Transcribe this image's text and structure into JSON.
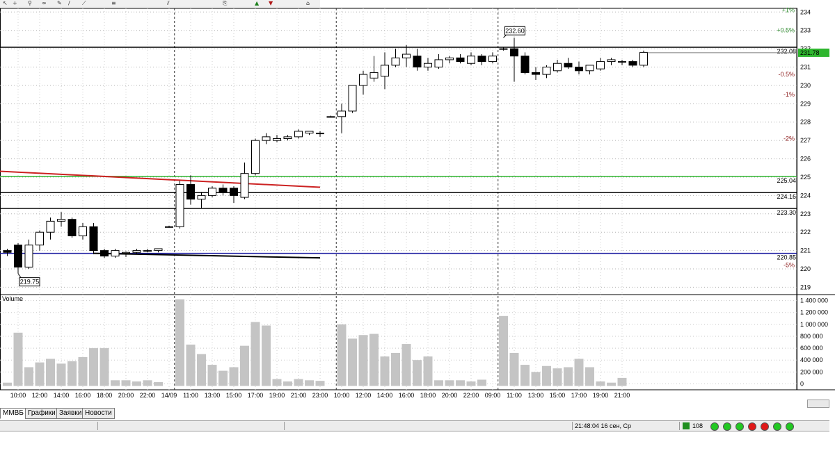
{
  "chart_data": {
    "type": "candlestick",
    "instrument_tab": "ММВБ",
    "price_axis": {
      "range": [
        218.6,
        234.2
      ],
      "ticks": [
        "219",
        "220",
        "221",
        "222",
        "223",
        "224",
        "225",
        "226",
        "227",
        "228",
        "229",
        "230",
        "231",
        "232",
        "233",
        "234"
      ]
    },
    "percent_labels": [
      {
        "text": "+1%",
        "price": 234.1,
        "color": "#2e8b2e"
      },
      {
        "text": "+0.5%",
        "price": 233.0,
        "color": "#2e8b2e"
      },
      {
        "text": "-0.5%",
        "price": 230.6,
        "color": "#8b1a1a"
      },
      {
        "text": "-1%",
        "price": 229.5,
        "color": "#8b1a1a"
      },
      {
        "text": "-2%",
        "price": 227.1,
        "color": "#8b1a1a"
      },
      {
        "text": "-5%",
        "price": 220.2,
        "color": "#8b1a1a"
      }
    ],
    "levels": [
      {
        "price": 232.08,
        "label": "232.08",
        "color": "#000000"
      },
      {
        "price": 225.04,
        "label": "225.04",
        "color": "#2fb62f"
      },
      {
        "price": 224.16,
        "label": "224.16",
        "color": "#000000"
      },
      {
        "price": 223.3,
        "label": "223.30",
        "color": "#000000"
      },
      {
        "price": 220.85,
        "label": "220.85",
        "color": "#1a1aa0"
      }
    ],
    "current_price": {
      "value": "231.78",
      "price": 231.78,
      "color": "#2fb62f"
    },
    "annotations": [
      {
        "text": "232.60",
        "index": 46,
        "price": 232.6
      },
      {
        "text": "219.75",
        "index": 1,
        "price": 219.75
      }
    ],
    "trend_lines": [
      {
        "color": "#cc2222",
        "points": [
          [
            -1.6,
            225.35
          ],
          [
            29,
            224.45
          ]
        ]
      },
      {
        "color": "#000000",
        "points": [
          [
            8,
            220.85
          ],
          [
            29,
            220.6
          ]
        ]
      }
    ],
    "x_labels": [
      {
        "text": "10:00",
        "index": 1
      },
      {
        "text": "12:00",
        "index": 3
      },
      {
        "text": "14:00",
        "index": 5
      },
      {
        "text": "16:00",
        "index": 7
      },
      {
        "text": "18:00",
        "index": 9
      },
      {
        "text": "20:00",
        "index": 11
      },
      {
        "text": "22:00",
        "index": 13
      },
      {
        "text": "14/09",
        "index": 15
      },
      {
        "text": "11:00",
        "index": 17
      },
      {
        "text": "13:00",
        "index": 19
      },
      {
        "text": "15:00",
        "index": 21
      },
      {
        "text": "17:00",
        "index": 23
      },
      {
        "text": "19:00",
        "index": 25
      },
      {
        "text": "21:00",
        "index": 27
      },
      {
        "text": "23:00",
        "index": 29
      },
      {
        "text": "10:00",
        "index": 31
      },
      {
        "text": "12:00",
        "index": 33
      },
      {
        "text": "14:00",
        "index": 35
      },
      {
        "text": "16:00",
        "index": 37
      },
      {
        "text": "18:00",
        "index": 39
      },
      {
        "text": "20:00",
        "index": 41
      },
      {
        "text": "22:00",
        "index": 43
      },
      {
        "text": "09:00",
        "index": 45
      },
      {
        "text": "11:00",
        "index": 47
      },
      {
        "text": "13:00",
        "index": 49
      },
      {
        "text": "15:00",
        "index": 51
      },
      {
        "text": "17:00",
        "index": 53
      },
      {
        "text": "19:00",
        "index": 55
      },
      {
        "text": "21:00",
        "index": 57
      }
    ],
    "session_separators": [
      15.5,
      30.5,
      45.5
    ],
    "candles": [
      {
        "o": 221.0,
        "h": 221.1,
        "l": 220.7,
        "c": 220.9
      },
      {
        "o": 221.3,
        "h": 221.4,
        "l": 219.75,
        "c": 220.1
      },
      {
        "o": 220.1,
        "h": 221.6,
        "l": 220.0,
        "c": 221.3
      },
      {
        "o": 221.3,
        "h": 222.1,
        "l": 221.0,
        "c": 222.0
      },
      {
        "o": 222.0,
        "h": 222.8,
        "l": 221.6,
        "c": 222.6
      },
      {
        "o": 222.6,
        "h": 223.1,
        "l": 222.3,
        "c": 222.7
      },
      {
        "o": 222.7,
        "h": 222.8,
        "l": 221.7,
        "c": 221.8
      },
      {
        "o": 221.8,
        "h": 222.5,
        "l": 221.6,
        "c": 222.3
      },
      {
        "o": 222.3,
        "h": 222.5,
        "l": 220.8,
        "c": 221.0
      },
      {
        "o": 221.0,
        "h": 221.1,
        "l": 220.6,
        "c": 220.7
      },
      {
        "o": 220.7,
        "h": 221.1,
        "l": 220.6,
        "c": 221.0
      },
      {
        "o": 220.85,
        "h": 220.95,
        "l": 220.65,
        "c": 220.9
      },
      {
        "o": 220.9,
        "h": 221.1,
        "l": 220.8,
        "c": 221.0
      },
      {
        "o": 221.0,
        "h": 221.1,
        "l": 220.9,
        "c": 221.0
      },
      {
        "o": 221.0,
        "h": 221.1,
        "l": 220.9,
        "c": 221.1
      },
      {
        "o": 222.3,
        "h": 222.35,
        "l": 222.25,
        "c": 222.3
      },
      {
        "o": 222.3,
        "h": 224.8,
        "l": 222.2,
        "c": 224.6
      },
      {
        "o": 224.6,
        "h": 225.1,
        "l": 223.5,
        "c": 223.8
      },
      {
        "o": 223.8,
        "h": 224.2,
        "l": 223.3,
        "c": 224.0
      },
      {
        "o": 224.0,
        "h": 224.5,
        "l": 223.9,
        "c": 224.4
      },
      {
        "o": 224.4,
        "h": 224.6,
        "l": 224.0,
        "c": 224.2
      },
      {
        "o": 224.4,
        "h": 224.5,
        "l": 223.6,
        "c": 224.0
      },
      {
        "o": 223.9,
        "h": 225.8,
        "l": 223.8,
        "c": 225.2
      },
      {
        "o": 225.2,
        "h": 227.1,
        "l": 225.1,
        "c": 227.0
      },
      {
        "o": 227.0,
        "h": 227.4,
        "l": 226.8,
        "c": 227.2
      },
      {
        "o": 227.0,
        "h": 227.3,
        "l": 226.9,
        "c": 227.1
      },
      {
        "o": 227.1,
        "h": 227.3,
        "l": 227.0,
        "c": 227.2
      },
      {
        "o": 227.2,
        "h": 227.6,
        "l": 227.1,
        "c": 227.5
      },
      {
        "o": 227.4,
        "h": 227.5,
        "l": 227.3,
        "c": 227.5
      },
      {
        "o": 227.4,
        "h": 227.5,
        "l": 227.2,
        "c": 227.4
      },
      {
        "o": 228.3,
        "h": 228.35,
        "l": 228.25,
        "c": 228.3
      },
      {
        "o": 228.3,
        "h": 229.0,
        "l": 227.4,
        "c": 228.6
      },
      {
        "o": 228.6,
        "h": 230.0,
        "l": 228.5,
        "c": 230.0
      },
      {
        "o": 230.0,
        "h": 230.8,
        "l": 229.5,
        "c": 230.6
      },
      {
        "o": 230.4,
        "h": 231.6,
        "l": 230.2,
        "c": 230.7
      },
      {
        "o": 230.5,
        "h": 231.8,
        "l": 229.8,
        "c": 231.1
      },
      {
        "o": 231.1,
        "h": 232.0,
        "l": 231.0,
        "c": 231.5
      },
      {
        "o": 231.5,
        "h": 232.2,
        "l": 231.0,
        "c": 231.7
      },
      {
        "o": 231.6,
        "h": 232.0,
        "l": 230.8,
        "c": 231.0
      },
      {
        "o": 231.0,
        "h": 231.5,
        "l": 230.8,
        "c": 231.2
      },
      {
        "o": 231.0,
        "h": 231.7,
        "l": 230.9,
        "c": 231.4
      },
      {
        "o": 231.4,
        "h": 231.6,
        "l": 231.2,
        "c": 231.5
      },
      {
        "o": 231.5,
        "h": 231.7,
        "l": 231.2,
        "c": 231.3
      },
      {
        "o": 231.2,
        "h": 231.8,
        "l": 231.1,
        "c": 231.6
      },
      {
        "o": 231.6,
        "h": 231.7,
        "l": 231.1,
        "c": 231.3
      },
      {
        "o": 231.3,
        "h": 231.8,
        "l": 231.2,
        "c": 231.6
      },
      {
        "o": 232.0,
        "h": 232.1,
        "l": 231.9,
        "c": 232.0
      },
      {
        "o": 232.0,
        "h": 232.6,
        "l": 230.2,
        "c": 231.6
      },
      {
        "o": 231.6,
        "h": 231.8,
        "l": 230.6,
        "c": 230.7
      },
      {
        "o": 230.7,
        "h": 231.0,
        "l": 230.3,
        "c": 230.6
      },
      {
        "o": 230.6,
        "h": 231.1,
        "l": 230.4,
        "c": 231.0
      },
      {
        "o": 230.8,
        "h": 231.4,
        "l": 230.7,
        "c": 231.2
      },
      {
        "o": 231.2,
        "h": 231.5,
        "l": 230.9,
        "c": 231.0
      },
      {
        "o": 231.0,
        "h": 231.3,
        "l": 230.6,
        "c": 230.8
      },
      {
        "o": 230.8,
        "h": 231.1,
        "l": 230.6,
        "c": 231.1
      },
      {
        "o": 230.9,
        "h": 231.5,
        "l": 230.8,
        "c": 231.3
      },
      {
        "o": 231.3,
        "h": 231.5,
        "l": 231.1,
        "c": 231.4
      },
      {
        "o": 231.3,
        "h": 231.4,
        "l": 231.1,
        "c": 231.3
      },
      {
        "o": 231.3,
        "h": 231.4,
        "l": 231.0,
        "c": 231.1
      },
      {
        "o": 231.1,
        "h": 231.9,
        "l": 231.0,
        "c": 231.8
      }
    ],
    "volume": {
      "label": "Volume",
      "range": [
        -100000,
        1500000
      ],
      "ticks": [
        "0",
        "200 000",
        "400 000",
        "600 000",
        "800 000",
        "1 000 000",
        "1 200 000",
        "1 400 000"
      ],
      "values": [
        20000,
        860000,
        280000,
        360000,
        420000,
        340000,
        380000,
        450000,
        600000,
        600000,
        60000,
        60000,
        40000,
        60000,
        30000,
        0,
        1420000,
        660000,
        500000,
        320000,
        220000,
        280000,
        640000,
        1040000,
        980000,
        80000,
        40000,
        80000,
        60000,
        50000,
        0,
        1000000,
        760000,
        820000,
        840000,
        460000,
        520000,
        670000,
        400000,
        460000,
        60000,
        60000,
        60000,
        40000,
        70000,
        0,
        1140000,
        520000,
        320000,
        200000,
        300000,
        260000,
        280000,
        420000,
        280000,
        40000,
        20000,
        100000,
        0,
        0
      ]
    }
  },
  "toolbar": {
    "icons": [
      "cursor-icon",
      "crosshair-icon",
      "zoom-icon",
      "chain-icon",
      "pencil-icon",
      "line-tool-icon",
      "fan-tool-icon",
      "fib-tool-icon",
      "channel-tool-icon",
      "text-tool-icon",
      "buy-icon",
      "sell-icon",
      "close-all-icon"
    ]
  },
  "tabs": [
    {
      "label": "ММВБ",
      "active": true
    },
    {
      "label": "Графики",
      "active": false
    },
    {
      "label": "Заявки",
      "active": false
    },
    {
      "label": "Новости",
      "active": false
    }
  ],
  "status": {
    "time": "21:48:04  16 сен, Ср",
    "count": "108",
    "indicators": [
      "#22c822",
      "#22c822",
      "#22c822",
      "#e01818",
      "#e01818",
      "#22c822",
      "#22c822"
    ]
  }
}
